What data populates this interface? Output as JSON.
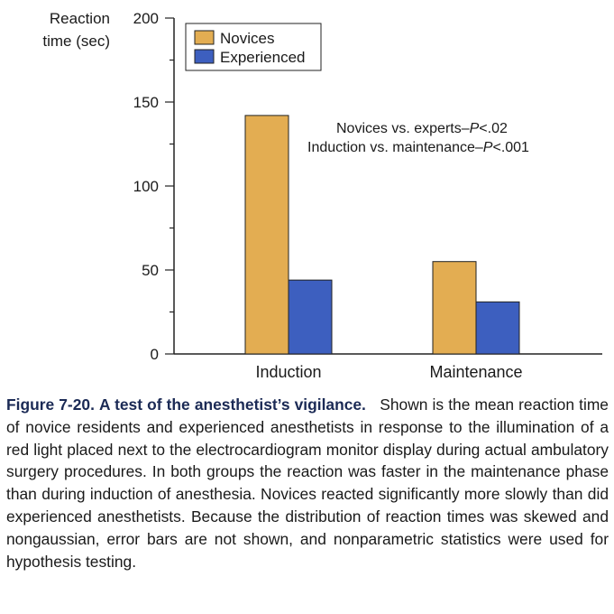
{
  "chart_data": {
    "type": "bar",
    "categories": [
      "Induction",
      "Maintenance"
    ],
    "series": [
      {
        "name": "Novices",
        "values": [
          142,
          55
        ],
        "color": "#e3ad52"
      },
      {
        "name": "Experienced",
        "values": [
          44,
          31
        ],
        "color": "#3d5fbf"
      }
    ],
    "ylabel": [
      "Reaction",
      "time (sec)"
    ],
    "ylim": [
      0,
      200
    ],
    "yticks": [
      0,
      50,
      100,
      150,
      200
    ],
    "legend_position": "top-left",
    "grid": false,
    "annotations": [
      {
        "prefix": "Novices vs. experts–",
        "italic": "P",
        "suffix": "<.02"
      },
      {
        "prefix": "Induction vs. maintenance–",
        "italic": "P",
        "suffix": "<.001"
      }
    ]
  },
  "caption": {
    "figure_number": "Figure 7-20.",
    "title": "A test of the anesthetist’s vigilance.",
    "body": "Shown is the mean reaction time of novice residents and experienced anesthetists in response to the illumination of a red light placed next to the electrocardiogram monitor display during actual ambulatory surgery procedures. In both groups the reaction was faster in the maintenance phase than during induction of anesthesia. Novices reacted significantly more slowly than did experienced anesthetists. Because the distribution of reaction times was skewed and nongaussian, error bars are not shown, and nonparametric statistics were used for hypothesis testing."
  }
}
